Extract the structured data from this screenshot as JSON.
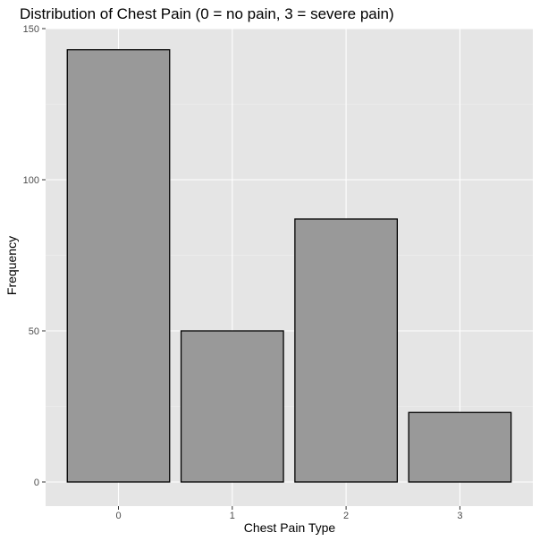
{
  "chart_data": {
    "type": "bar",
    "title": "Distribution of Chest Pain (0 = no pain, 3 = severe pain)",
    "xlabel": "Chest Pain Type",
    "ylabel": "Frequency",
    "categories": [
      "0",
      "1",
      "2",
      "3"
    ],
    "values": [
      143,
      50,
      87,
      23
    ],
    "ylim": [
      0,
      150
    ],
    "yticks": [
      0,
      50,
      100,
      150
    ],
    "grid": true,
    "colors": {
      "panel_background": "#e5e5e5",
      "grid_major": "#ffffff",
      "grid_minor": "#f2f2f2",
      "bar_fill": "#999999",
      "bar_stroke": "#000000"
    }
  }
}
